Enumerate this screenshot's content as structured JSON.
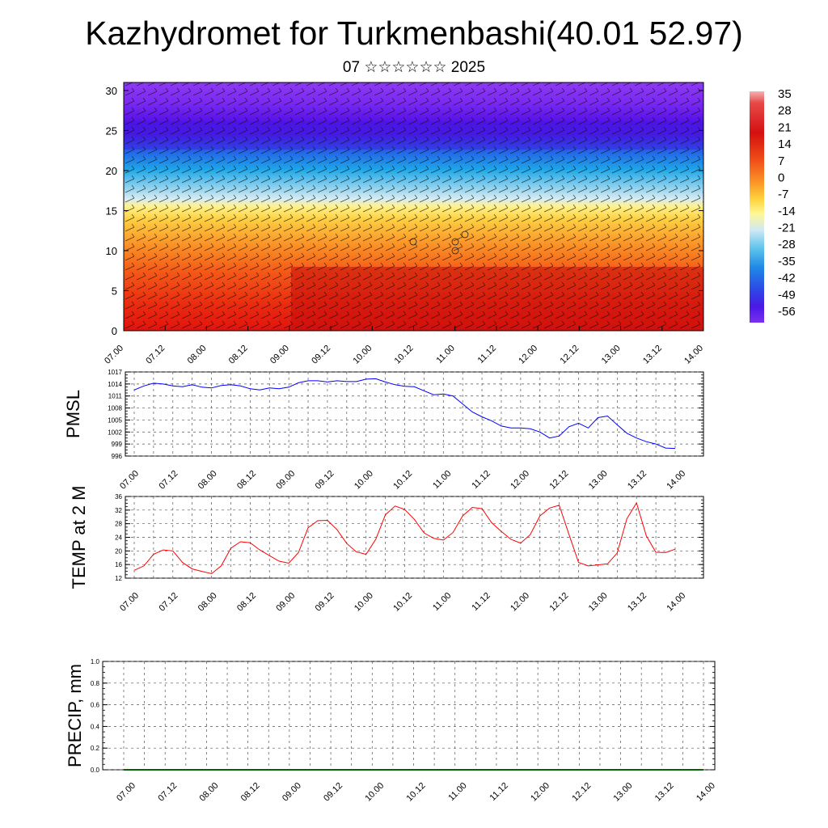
{
  "title": "Kazhydromet for Turkmenbashi(40.01 52.97)",
  "subtitle": "07 ☆☆☆☆☆☆ 2025",
  "colors": {
    "pmsl_line": "#0000ff",
    "temp_line": "#ff0000",
    "precip_line": "#006400"
  },
  "colorbar_labels": [
    "35",
    "28",
    "21",
    "14",
    "7",
    "0",
    "-7",
    "-14",
    "-21",
    "-28",
    "-35",
    "-42",
    "-49",
    "-56"
  ],
  "chart_data": [
    {
      "type": "heatmap",
      "name": "cross-section",
      "x_tick_labels": [
        "07.00",
        "07.12",
        "08.00",
        "08.12",
        "09.00",
        "09.12",
        "10.00",
        "10.12",
        "11.00",
        "11.12",
        "12.00",
        "12.12",
        "13.00",
        "13.12",
        "14.00"
      ],
      "y_tick_labels": [
        "0",
        "5",
        "10",
        "15",
        "20",
        "25",
        "30"
      ],
      "ylim": [
        0,
        31
      ],
      "color_scale": [
        35,
        28,
        21,
        14,
        7,
        0,
        -7,
        -14,
        -21,
        -28,
        -35,
        -42,
        -49,
        -56
      ],
      "overlay": "wind barbs"
    },
    {
      "type": "line",
      "name": "pmsl",
      "ylabel": "PMSL",
      "ylim": [
        996,
        1017
      ],
      "y_tick_labels": [
        "996",
        "999",
        "1002",
        "1005",
        "1008",
        "1011",
        "1014",
        "1017"
      ],
      "x_tick_labels": [
        "07.00",
        "07.12",
        "08.00",
        "08.12",
        "09.00",
        "09.12",
        "10.00",
        "10.12",
        "11.00",
        "11.12",
        "12.00",
        "12.12",
        "13.00",
        "13.12",
        "14.00"
      ],
      "x": [
        0,
        3,
        6,
        9,
        12,
        15,
        18,
        21,
        24,
        27,
        30,
        33,
        36,
        39,
        42,
        45,
        48,
        51,
        54,
        57,
        60,
        63,
        66,
        69,
        72,
        75,
        78,
        81,
        84,
        87,
        90,
        93,
        96,
        99,
        102,
        105,
        108,
        111,
        114,
        117,
        120,
        123,
        126,
        129,
        132,
        135,
        138,
        141,
        144,
        147,
        150,
        153,
        156,
        159,
        162,
        165,
        168
      ],
      "y": [
        1012.5,
        1013.5,
        1014.2,
        1014.0,
        1013.5,
        1013.3,
        1013.8,
        1013.2,
        1013.0,
        1013.6,
        1013.8,
        1013.5,
        1012.8,
        1012.5,
        1013.0,
        1012.8,
        1013.2,
        1014.3,
        1014.8,
        1014.8,
        1014.5,
        1014.8,
        1014.6,
        1014.6,
        1015.2,
        1015.3,
        1014.5,
        1013.8,
        1013.4,
        1013.3,
        1012.3,
        1011.3,
        1011.5,
        1011.0,
        1009.0,
        1007.0,
        1005.8,
        1004.8,
        1003.5,
        1003.0,
        1003.0,
        1002.8,
        1002.0,
        1000.5,
        1001.0,
        1003.3,
        1004.2,
        1003.0,
        1005.6,
        1006.0,
        1003.8,
        1001.7,
        1000.5,
        999.6,
        999.0,
        998.0,
        997.9
      ]
    },
    {
      "type": "line",
      "name": "temp",
      "ylabel": "TEMP at 2 M",
      "ylim": [
        12,
        36
      ],
      "y_tick_labels": [
        "12",
        "16",
        "20",
        "24",
        "28",
        "32",
        "36"
      ],
      "x_tick_labels": [
        "07.00",
        "07.12",
        "08.00",
        "08.12",
        "09.00",
        "09.12",
        "10.00",
        "10.12",
        "11.00",
        "11.12",
        "12.00",
        "12.12",
        "13.00",
        "13.12",
        "14.00"
      ],
      "x": [
        0,
        3,
        6,
        9,
        12,
        15,
        18,
        21,
        24,
        27,
        30,
        33,
        36,
        39,
        42,
        45,
        48,
        51,
        54,
        57,
        60,
        63,
        66,
        69,
        72,
        75,
        78,
        81,
        84,
        87,
        90,
        93,
        96,
        99,
        102,
        105,
        108,
        111,
        114,
        117,
        120,
        123,
        126,
        129,
        132,
        135,
        138,
        141,
        144,
        147,
        150,
        153,
        156,
        159,
        162,
        165,
        168
      ],
      "y": [
        14.3,
        15.6,
        19.0,
        20.3,
        20.0,
        16.6,
        14.7,
        14.0,
        13.3,
        15.6,
        20.8,
        22.7,
        22.4,
        20.3,
        18.6,
        17.0,
        16.4,
        19.5,
        26.8,
        28.9,
        29.0,
        26.2,
        22.2,
        19.7,
        19.0,
        23.4,
        30.6,
        33.2,
        32.2,
        29.3,
        25.3,
        23.7,
        23.2,
        25.4,
        30.3,
        32.8,
        32.4,
        28.3,
        25.7,
        23.4,
        22.3,
        24.8,
        30.3,
        32.6,
        33.4,
        24.9,
        16.6,
        15.6,
        15.9,
        16.2,
        19.4,
        29.5,
        34.1,
        24.5,
        19.6,
        19.5,
        20.5
      ]
    },
    {
      "type": "line",
      "name": "precip",
      "ylabel": "PRECIP, mm",
      "ylim": [
        0,
        1
      ],
      "y_tick_labels": [
        "0.0",
        "0.2",
        "0.4",
        "0.6",
        "0.8",
        "1.0"
      ],
      "x_tick_labels": [
        "07.00",
        "07.12",
        "08.00",
        "08.12",
        "09.00",
        "09.12",
        "10.00",
        "10.12",
        "11.00",
        "11.12",
        "12.00",
        "12.12",
        "13.00",
        "13.12",
        "14.00"
      ],
      "x": [
        0,
        168
      ],
      "y": [
        0,
        0
      ]
    }
  ]
}
